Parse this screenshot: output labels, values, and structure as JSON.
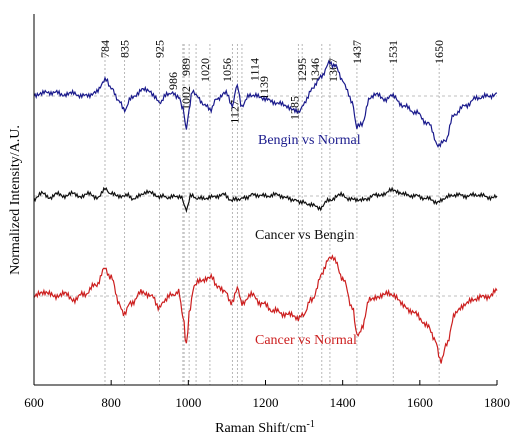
{
  "chart_data": {
    "type": "line",
    "xlabel": "Raman Shift/cm",
    "xlabel_sup": "-1",
    "ylabel": "Normalized Intensity/A.U.",
    "xlim": [
      600,
      1800
    ],
    "x_ticks": [
      600,
      800,
      1000,
      1200,
      1400,
      1600,
      1800
    ],
    "y_ticks_shown": false,
    "grid": "horizontal dashed baselines per series",
    "peak_lines": [
      {
        "value": 784,
        "label": "784"
      },
      {
        "value": 835,
        "label": "835"
      },
      {
        "value": 925,
        "label": "925"
      },
      {
        "value": 986,
        "label": "986"
      },
      {
        "value": 989,
        "label": "989"
      },
      {
        "value": 1002,
        "label": "1002"
      },
      {
        "value": 1020,
        "label": "1020"
      },
      {
        "value": 1056,
        "label": "1056"
      },
      {
        "value": 1114,
        "label": "1114"
      },
      {
        "value": 1127,
        "label": "1127"
      },
      {
        "value": 1139,
        "label": "1139"
      },
      {
        "value": 1285,
        "label": "1285"
      },
      {
        "value": 1295,
        "label": "1295"
      },
      {
        "value": 1346,
        "label": "1346"
      },
      {
        "value": 1367,
        "label": "1367"
      },
      {
        "value": 1437,
        "label": "1437"
      },
      {
        "value": 1531,
        "label": "1531"
      },
      {
        "value": 1650,
        "label": "1650"
      }
    ],
    "series": [
      {
        "name": "Bengin vs Normal",
        "color": "#1a1a8c",
        "points": [
          [
            600,
            0.05
          ],
          [
            620,
            0.1
          ],
          [
            650,
            0.12
          ],
          [
            680,
            0.05
          ],
          [
            700,
            0.08
          ],
          [
            730,
            0.0
          ],
          [
            760,
            0.1
          ],
          [
            784,
            0.55
          ],
          [
            800,
            0.3
          ],
          [
            820,
            -0.2
          ],
          [
            835,
            -0.45
          ],
          [
            850,
            -0.1
          ],
          [
            880,
            0.2
          ],
          [
            900,
            0.15
          ],
          [
            925,
            -0.2
          ],
          [
            950,
            0.1
          ],
          [
            975,
            0.0
          ],
          [
            986,
            -0.4
          ],
          [
            995,
            -1.15
          ],
          [
            1002,
            -0.4
          ],
          [
            1010,
            0.2
          ],
          [
            1020,
            0.0
          ],
          [
            1040,
            -0.25
          ],
          [
            1056,
            -0.45
          ],
          [
            1075,
            -0.1
          ],
          [
            1095,
            0.15
          ],
          [
            1114,
            -0.3
          ],
          [
            1127,
            0.35
          ],
          [
            1139,
            -0.35
          ],
          [
            1160,
            0.05
          ],
          [
            1190,
            -0.05
          ],
          [
            1220,
            -0.2
          ],
          [
            1250,
            -0.3
          ],
          [
            1285,
            -0.55
          ],
          [
            1295,
            -0.35
          ],
          [
            1320,
            0.2
          ],
          [
            1346,
            0.7
          ],
          [
            1367,
            1.1
          ],
          [
            1380,
            1.0
          ],
          [
            1400,
            0.5
          ],
          [
            1425,
            -0.2
          ],
          [
            1437,
            -1.05
          ],
          [
            1450,
            -0.9
          ],
          [
            1470,
            -0.1
          ],
          [
            1490,
            0.05
          ],
          [
            1510,
            -0.1
          ],
          [
            1531,
            0.0
          ],
          [
            1560,
            -0.35
          ],
          [
            1590,
            -0.55
          ],
          [
            1620,
            -0.9
          ],
          [
            1650,
            -1.65
          ],
          [
            1665,
            -1.5
          ],
          [
            1690,
            -0.6
          ],
          [
            1720,
            -0.3
          ],
          [
            1750,
            -0.05
          ],
          [
            1780,
            0.0
          ],
          [
            1800,
            0.1
          ]
        ]
      },
      {
        "name": "Cancer vs Bengin",
        "color": "#111111",
        "points": [
          [
            600,
            -0.1
          ],
          [
            620,
            0.1
          ],
          [
            640,
            -0.1
          ],
          [
            660,
            0.15
          ],
          [
            680,
            -0.05
          ],
          [
            700,
            0.1
          ],
          [
            720,
            0.0
          ],
          [
            740,
            0.1
          ],
          [
            760,
            -0.1
          ],
          [
            784,
            0.25
          ],
          [
            800,
            0.1
          ],
          [
            820,
            -0.05
          ],
          [
            835,
            0.05
          ],
          [
            860,
            -0.1
          ],
          [
            890,
            0.15
          ],
          [
            925,
            0.0
          ],
          [
            950,
            -0.05
          ],
          [
            980,
            0.0
          ],
          [
            995,
            -0.55
          ],
          [
            1005,
            0.0
          ],
          [
            1030,
            -0.1
          ],
          [
            1060,
            -0.05
          ],
          [
            1090,
            0.05
          ],
          [
            1114,
            -0.15
          ],
          [
            1139,
            -0.1
          ],
          [
            1170,
            0.05
          ],
          [
            1200,
            0.0
          ],
          [
            1230,
            0.05
          ],
          [
            1260,
            -0.1
          ],
          [
            1285,
            -0.2
          ],
          [
            1310,
            -0.3
          ],
          [
            1340,
            -0.45
          ],
          [
            1367,
            -0.15
          ],
          [
            1390,
            0.05
          ],
          [
            1420,
            -0.1
          ],
          [
            1440,
            -0.2
          ],
          [
            1460,
            -0.1
          ],
          [
            1490,
            0.05
          ],
          [
            1510,
            0.1
          ],
          [
            1531,
            0.25
          ],
          [
            1560,
            0.05
          ],
          [
            1590,
            0.0
          ],
          [
            1620,
            -0.1
          ],
          [
            1640,
            -0.25
          ],
          [
            1660,
            -0.1
          ],
          [
            1690,
            0.05
          ],
          [
            1720,
            0.0
          ],
          [
            1750,
            0.05
          ],
          [
            1780,
            -0.05
          ],
          [
            1800,
            0.0
          ]
        ]
      },
      {
        "name": "Cancer vs Normal",
        "color": "#cc1f1f",
        "points": [
          [
            600,
            0.0
          ],
          [
            620,
            0.05
          ],
          [
            640,
            0.1
          ],
          [
            660,
            0.0
          ],
          [
            680,
            0.05
          ],
          [
            700,
            -0.1
          ],
          [
            730,
            0.05
          ],
          [
            760,
            0.3
          ],
          [
            784,
            0.75
          ],
          [
            800,
            0.5
          ],
          [
            820,
            -0.2
          ],
          [
            835,
            -0.5
          ],
          [
            850,
            -0.2
          ],
          [
            880,
            0.1
          ],
          [
            900,
            0.05
          ],
          [
            925,
            -0.3
          ],
          [
            950,
            0.0
          ],
          [
            975,
            0.1
          ],
          [
            986,
            -0.6
          ],
          [
            995,
            -1.35
          ],
          [
            1002,
            -0.5
          ],
          [
            1015,
            0.3
          ],
          [
            1030,
            0.4
          ],
          [
            1056,
            0.55
          ],
          [
            1075,
            0.3
          ],
          [
            1095,
            0.1
          ],
          [
            1114,
            -0.2
          ],
          [
            1127,
            0.25
          ],
          [
            1139,
            -0.25
          ],
          [
            1160,
            0.05
          ],
          [
            1190,
            -0.2
          ],
          [
            1220,
            -0.4
          ],
          [
            1250,
            -0.5
          ],
          [
            1285,
            -0.6
          ],
          [
            1295,
            -0.55
          ],
          [
            1320,
            -0.1
          ],
          [
            1346,
            0.6
          ],
          [
            1367,
            1.1
          ],
          [
            1380,
            1.0
          ],
          [
            1400,
            0.5
          ],
          [
            1425,
            -0.3
          ],
          [
            1437,
            -1.1
          ],
          [
            1450,
            -0.9
          ],
          [
            1470,
            -0.1
          ],
          [
            1490,
            0.0
          ],
          [
            1510,
            0.05
          ],
          [
            1531,
            0.05
          ],
          [
            1560,
            -0.3
          ],
          [
            1590,
            -0.5
          ],
          [
            1620,
            -0.85
          ],
          [
            1640,
            -1.2
          ],
          [
            1655,
            -1.85
          ],
          [
            1670,
            -1.3
          ],
          [
            1690,
            -0.5
          ],
          [
            1720,
            -0.2
          ],
          [
            1750,
            -0.05
          ],
          [
            1780,
            0.0
          ],
          [
            1800,
            0.15
          ]
        ]
      }
    ]
  }
}
